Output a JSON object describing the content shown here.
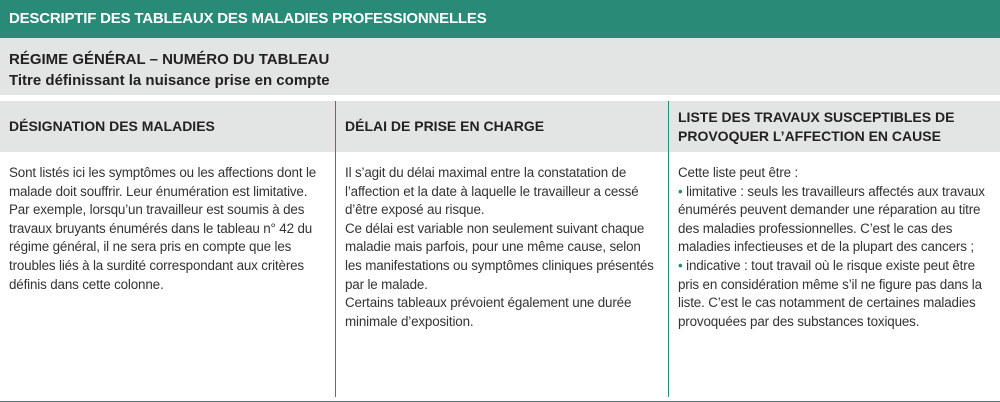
{
  "header": {
    "title": "DESCRIPTIF DES TABLEAUX DES MALADIES PROFESSIONNELLES"
  },
  "subheader": {
    "line1": "RÉGIME GÉNÉRAL – NUMÉRO DU TABLEAU",
    "line2": "Titre définissant la nuisance prise en compte"
  },
  "table": {
    "columns": [
      "DÉSIGNATION DES MALADIES",
      "DÉLAI DE PRISE EN CHARGE",
      "LISTE DES TRAVAUX SUSCEPTIBLES DE PROVOQUER L’AFFECTION EN CAUSE"
    ],
    "col1": [
      "Sont listés ici les symptômes ou les affections dont le malade doit souffrir. Leur énumération est limitative.",
      "Par exemple, lorsqu’un travailleur est soumis à des travaux bruyants énumérés dans le tableau n° 42 du régime général, il ne sera pris en compte que les troubles liés à la surdité correspondant aux critères définis dans cette colonne."
    ],
    "col2": [
      "Il s’agit du délai maximal entre la constatation de l’affection et la date à laquelle le travailleur a cessé d’être exposé au risque.",
      "Ce délai est variable non seulement suivant chaque maladie mais parfois, pour une même cause, selon les manifestations ou symptômes cliniques présentés par le malade.",
      "Certains tableaux prévoient également une durée minimale d’exposition."
    ],
    "col3": {
      "intro": "Cette liste peut être :",
      "items": [
        "limitative : seuls les travailleurs affectés aux travaux énumérés peuvent demander une réparation au titre des maladies professionnelles. C’est le cas des maladies infectieuses et de la plupart des cancers ;",
        "indicative : tout travail où le risque existe peut être pris en considération même s’il ne figure pas dans la liste. C’est le cas notamment de certaines maladies provoquées par des substances toxiques."
      ]
    }
  }
}
